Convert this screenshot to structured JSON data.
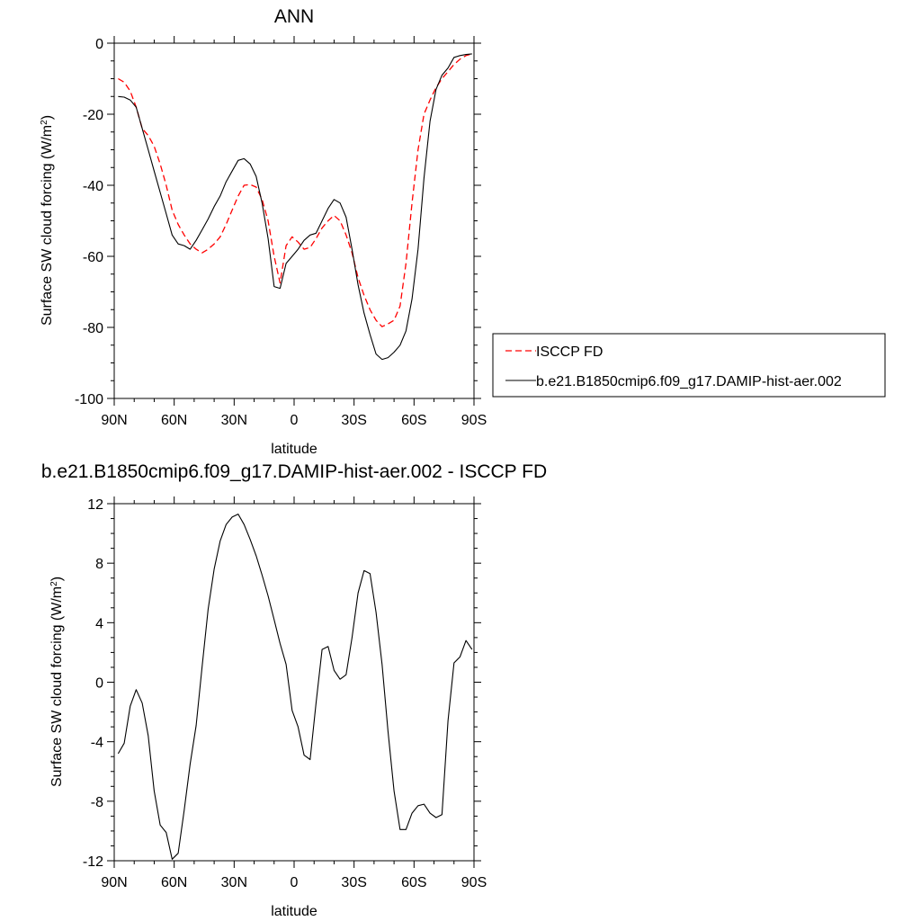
{
  "chart_data": [
    {
      "type": "line",
      "title": "ANN",
      "xlabel": "latitude",
      "ylabel": "Surface SW cloud forcing (W/m",
      "ylabel_sup": "2",
      "ylabel_close": ")",
      "xlim": [
        90,
        -90
      ],
      "ylim": [
        -100,
        0
      ],
      "x_ticks": [
        90,
        60,
        30,
        0,
        -30,
        -60,
        -90
      ],
      "x_tick_labels": [
        "90N",
        "60N",
        "30N",
        "0",
        "30S",
        "60S",
        "90S"
      ],
      "y_ticks": [
        0,
        -20,
        -40,
        -60,
        -80,
        -100
      ],
      "y_tick_labels": [
        "0",
        "-20",
        "-40",
        "-60",
        "-80",
        "-100"
      ],
      "legend_position": "right",
      "series": [
        {
          "name": "ISCCP FD",
          "color": "#ff0000",
          "dash": "dashed",
          "x": [
            88,
            85,
            82,
            79,
            76,
            73,
            70,
            67,
            64,
            61,
            58,
            55,
            52,
            49,
            46,
            43,
            40,
            37,
            34,
            31,
            28,
            25,
            22,
            19,
            16,
            13,
            10,
            7,
            4,
            1,
            -2,
            -5,
            -8,
            -11,
            -14,
            -17,
            -20,
            -23,
            -26,
            -29,
            -32,
            -35,
            -38,
            -41,
            -44,
            -47,
            -50,
            -53,
            -56,
            -59,
            -62,
            -65,
            -68,
            -71,
            -74,
            -77,
            -80,
            -83,
            -86,
            -89
          ],
          "y": [
            -10,
            -11,
            -13.5,
            -18,
            -24,
            -26,
            -29,
            -34,
            -40,
            -47,
            -51,
            -54,
            -56.5,
            -58,
            -59,
            -58,
            -56.5,
            -54.5,
            -51,
            -47,
            -43,
            -40,
            -39.8,
            -40.5,
            -44,
            -50,
            -60,
            -67.5,
            -57,
            -54.5,
            -56,
            -58,
            -57.5,
            -55,
            -52,
            -50,
            -48.5,
            -50,
            -54,
            -59,
            -66,
            -71,
            -75,
            -78,
            -79.8,
            -79,
            -78,
            -74,
            -62,
            -45,
            -30,
            -20,
            -16,
            -12.5,
            -10,
            -8,
            -6,
            -4.5,
            -3.5,
            -3
          ]
        },
        {
          "name": "b.e21.B1850cmip6.f09_g17.DAMIP-hist-aer.002",
          "color": "#000000",
          "dash": "solid",
          "x": [
            88,
            85,
            82,
            79,
            76,
            73,
            70,
            67,
            64,
            61,
            58,
            55,
            52,
            49,
            46,
            43,
            40,
            37,
            34,
            31,
            28,
            25,
            22,
            19,
            16,
            13,
            10,
            7,
            4,
            1,
            -2,
            -5,
            -8,
            -11,
            -14,
            -17,
            -20,
            -23,
            -26,
            -29,
            -32,
            -35,
            -38,
            -41,
            -44,
            -47,
            -50,
            -53,
            -56,
            -59,
            -62,
            -65,
            -68,
            -71,
            -74,
            -77,
            -80,
            -83,
            -86,
            -89
          ],
          "y": [
            -15,
            -15.2,
            -16,
            -18,
            -24,
            -30,
            -36,
            -42,
            -48,
            -54,
            -56.5,
            -57,
            -58,
            -55.5,
            -52.5,
            -49.5,
            -46,
            -43,
            -39,
            -36,
            -33,
            -32.5,
            -34,
            -37.5,
            -45,
            -55,
            -68.5,
            -69,
            -62,
            -60,
            -58,
            -55.5,
            -54,
            -53.5,
            -50,
            -46.5,
            -44,
            -45,
            -49,
            -58,
            -68,
            -76,
            -82,
            -87.5,
            -89,
            -88.5,
            -87,
            -85,
            -81,
            -72,
            -58,
            -38,
            -22,
            -13,
            -9,
            -7,
            -4,
            -3.5,
            -3.2,
            -3
          ]
        }
      ]
    },
    {
      "type": "line",
      "title": "b.e21.B1850cmip6.f09_g17.DAMIP-hist-aer.002 - ISCCP FD",
      "xlabel": "latitude",
      "ylabel": "Surface SW cloud forcing (W/m",
      "ylabel_sup": "2",
      "ylabel_close": ")",
      "xlim": [
        90,
        -90
      ],
      "ylim": [
        -12,
        12
      ],
      "x_ticks": [
        90,
        60,
        30,
        0,
        -30,
        -60,
        -90
      ],
      "x_tick_labels": [
        "90N",
        "60N",
        "30N",
        "0",
        "30S",
        "60S",
        "90S"
      ],
      "y_ticks": [
        12,
        8,
        4,
        0,
        -4,
        -8,
        -12
      ],
      "y_tick_labels": [
        "12",
        "8",
        "4",
        "0",
        "-4",
        "-8",
        "-12"
      ],
      "series": [
        {
          "color": "#000000",
          "dash": "solid",
          "x": [
            88,
            85,
            82,
            79,
            76,
            73,
            70,
            67,
            64,
            61,
            58,
            55,
            52,
            49,
            46,
            43,
            40,
            37,
            34,
            31,
            28,
            25,
            22,
            19,
            16,
            13,
            10,
            7,
            4,
            1,
            -2,
            -5,
            -8,
            -11,
            -14,
            -17,
            -20,
            -23,
            -26,
            -29,
            -32,
            -35,
            -38,
            -41,
            -44,
            -47,
            -50,
            -53,
            -56,
            -59,
            -62,
            -65,
            -68,
            -71,
            -74,
            -77,
            -80,
            -83,
            -86,
            -89
          ],
          "y": [
            -4.8,
            -4.1,
            -1.6,
            -0.5,
            -1.4,
            -3.6,
            -7.3,
            -9.6,
            -10.1,
            -11.9,
            -11.5,
            -8.6,
            -5.5,
            -2.9,
            1.1,
            4.9,
            7.6,
            9.5,
            10.6,
            11.1,
            11.3,
            10.6,
            9.6,
            8.5,
            7.2,
            5.8,
            4.2,
            2.6,
            1.2,
            -1.9,
            -3.0,
            -4.9,
            -5.2,
            -1.4,
            2.2,
            2.4,
            0.8,
            0.2,
            0.5,
            3.0,
            6.0,
            7.5,
            7.3,
            4.7,
            1.2,
            -3.3,
            -7.3,
            -9.9,
            -9.9,
            -8.8,
            -8.3,
            -8.2,
            -8.8,
            -9.1,
            -8.9,
            -2.6,
            1.3,
            1.7,
            2.8,
            2.2
          ]
        }
      ]
    }
  ]
}
